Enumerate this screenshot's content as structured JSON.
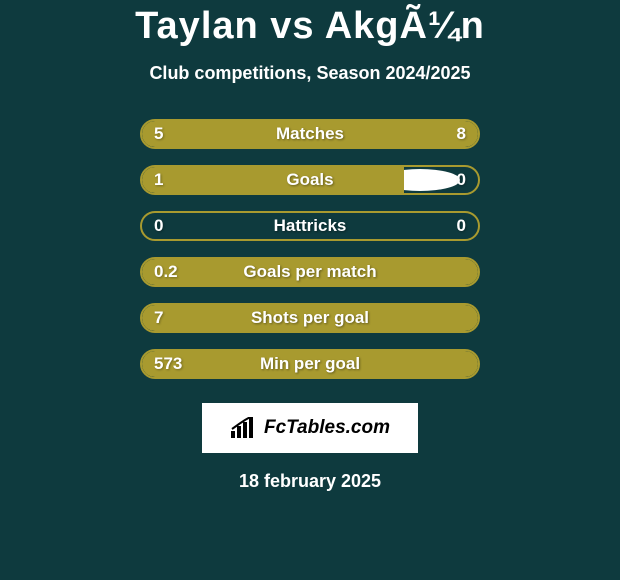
{
  "title": "Taylan vs AkgÃ¼n",
  "subtitle": "Club competitions, Season 2024/2025",
  "stats": [
    {
      "label": "Matches",
      "left_value": "5",
      "right_value": "8",
      "left_fill_pct": 38,
      "right_fill_pct": 62,
      "show_left_avatar": true,
      "show_right_avatar": true,
      "avatar_size": "large"
    },
    {
      "label": "Goals",
      "left_value": "1",
      "right_value": "0",
      "left_fill_pct": 78,
      "right_fill_pct": 0,
      "show_left_avatar": true,
      "show_right_avatar": true,
      "avatar_size": "small"
    },
    {
      "label": "Hattricks",
      "left_value": "0",
      "right_value": "0",
      "left_fill_pct": 0,
      "right_fill_pct": 0,
      "show_left_avatar": false,
      "show_right_avatar": false
    },
    {
      "label": "Goals per match",
      "left_value": "0.2",
      "right_value": "",
      "left_fill_pct": 100,
      "right_fill_pct": 0,
      "show_left_avatar": false,
      "show_right_avatar": false
    },
    {
      "label": "Shots per goal",
      "left_value": "7",
      "right_value": "",
      "left_fill_pct": 100,
      "right_fill_pct": 0,
      "show_left_avatar": false,
      "show_right_avatar": false
    },
    {
      "label": "Min per goal",
      "left_value": "573",
      "right_value": "",
      "left_fill_pct": 100,
      "right_fill_pct": 0,
      "show_left_avatar": false,
      "show_right_avatar": false
    }
  ],
  "logo_text": "FcTables.com",
  "date": "18 february 2025",
  "colors": {
    "background": "#0e3a3e",
    "bar_fill": "#a89a2f",
    "bar_border": "#a89a2f",
    "text": "#ffffff",
    "logo_bg": "#ffffff",
    "logo_text": "#000000"
  }
}
